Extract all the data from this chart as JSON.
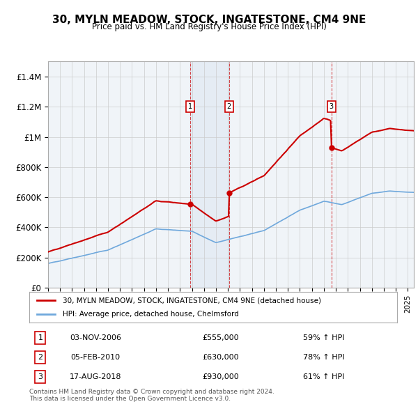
{
  "title": "30, MYLN MEADOW, STOCK, INGATESTONE, CM4 9NE",
  "subtitle": "Price paid vs. HM Land Registry's House Price Index (HPI)",
  "hpi_color": "#6fa8dc",
  "price_color": "#cc0000",
  "transaction_color": "#cc0000",
  "marker_bg": "#ff9999",
  "background_color": "#f0f4f8",
  "plot_bg": "#f0f4f8",
  "ylim": [
    0,
    1500000
  ],
  "yticks": [
    0,
    200000,
    400000,
    600000,
    800000,
    1000000,
    1200000,
    1400000
  ],
  "ytick_labels": [
    "£0",
    "£200K",
    "£400K",
    "£600K",
    "£800K",
    "£1M",
    "£1.2M",
    "£1.4M"
  ],
  "transactions": [
    {
      "date_num": 2006.84,
      "price": 555000,
      "label": "1",
      "pct": "59%",
      "dir": "↑"
    },
    {
      "date_num": 2010.09,
      "price": 630000,
      "label": "2",
      "pct": "78%",
      "dir": "↑"
    },
    {
      "date_num": 2018.63,
      "price": 930000,
      "label": "3",
      "pct": "61%",
      "dir": "↑"
    }
  ],
  "transaction_dates_str": [
    "03-NOV-2006",
    "05-FEB-2010",
    "17-AUG-2018"
  ],
  "transaction_prices_str": [
    "£555,000",
    "£630,000",
    "£930,000"
  ],
  "transaction_pcts": [
    "59% ↑ HPI",
    "78% ↑ HPI",
    "61% ↑ HPI"
  ],
  "legend_label_price": "30, MYLN MEADOW, STOCK, INGATESTONE, CM4 9NE (detached house)",
  "legend_label_hpi": "HPI: Average price, detached house, Chelmsford",
  "footer": "Contains HM Land Registry data © Crown copyright and database right 2024.\nThis data is licensed under the Open Government Licence v3.0.",
  "xmin": 1995.0,
  "xmax": 2025.5
}
